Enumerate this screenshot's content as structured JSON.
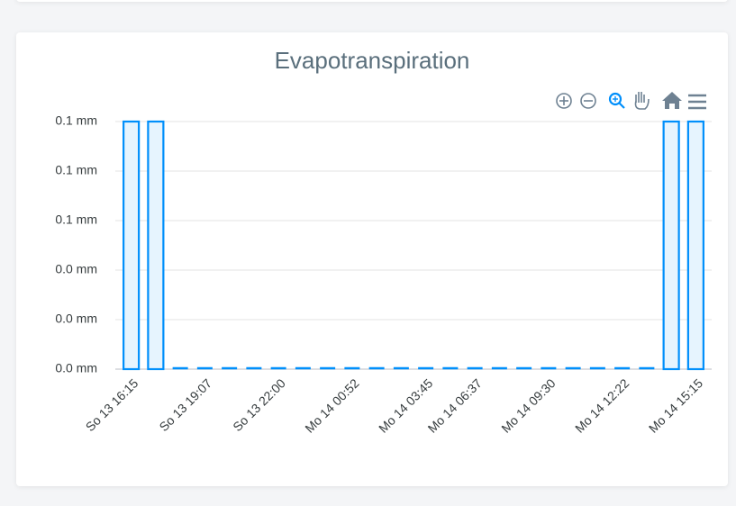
{
  "chart_data": {
    "type": "bar",
    "title": "Evapotranspiration",
    "categories": [
      "So 13 16:15",
      null,
      null,
      "So 13 19:07",
      null,
      null,
      "So 13 22:00",
      null,
      null,
      "Mo 14 00:52",
      null,
      null,
      "Mo 14 03:45",
      null,
      "Mo 14 06:37",
      null,
      null,
      "Mo 14 09:30",
      null,
      null,
      "Mo 14 12:22",
      null,
      null,
      "Mo 14 15:15"
    ],
    "values": [
      0.1,
      0.1,
      0,
      0,
      0,
      0,
      0,
      0,
      0,
      0,
      0,
      0,
      0,
      0,
      0,
      0,
      0,
      0,
      0,
      0,
      0,
      0,
      0.1,
      0.1
    ],
    "color": "#008ffb",
    "ylim": [
      0,
      0.1
    ],
    "yticks": [
      {
        "value": 0,
        "label": "0.0 mm"
      },
      {
        "value": 0.02,
        "label": "0.0 mm"
      },
      {
        "value": 0.04,
        "label": "0.0 mm"
      },
      {
        "value": 0.06,
        "label": "0.1 mm"
      },
      {
        "value": 0.08,
        "label": "0.1 mm"
      },
      {
        "value": 0.1,
        "label": "0.1 mm"
      }
    ],
    "grid": true
  }
}
